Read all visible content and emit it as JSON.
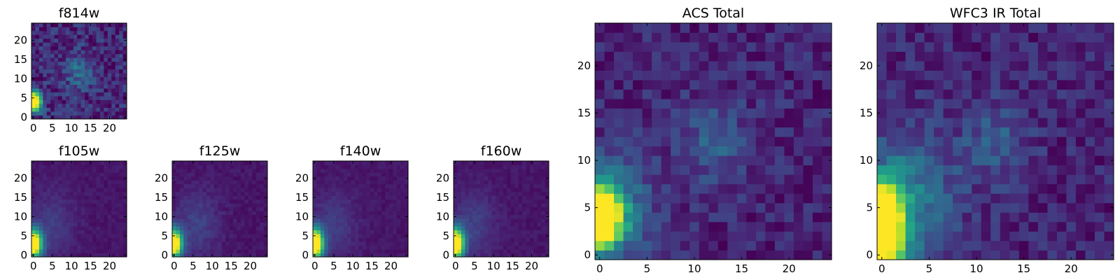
{
  "figure": {
    "colormap": "viridis",
    "colormap_stops": [
      "#440154",
      "#482878",
      "#3e4a89",
      "#31688e",
      "#26828e",
      "#1f9e89",
      "#35b779",
      "#6ece58",
      "#b5de2b",
      "#fde725"
    ]
  },
  "chart_data": [
    {
      "type": "heatmap",
      "title": "f814w",
      "grid_size": 25,
      "xlim": [
        0,
        24
      ],
      "ylim": [
        0,
        24
      ],
      "xticks": [
        "0",
        "5",
        "10",
        "15",
        "20"
      ],
      "yticks": [
        "0",
        "5",
        "10",
        "15",
        "20"
      ],
      "features": [
        {
          "x": 0,
          "y": 4,
          "sx": 1.4,
          "sy": 1.8,
          "value": 1.3
        },
        {
          "x": 12,
          "y": 12,
          "sx": 2.5,
          "sy": 3.0,
          "value": 0.25
        }
      ],
      "background": 0.12,
      "noise": 0.13
    },
    {
      "type": "heatmap",
      "title": "f105w",
      "grid_size": 25,
      "xlim": [
        0,
        24
      ],
      "ylim": [
        0,
        24
      ],
      "xticks": [
        "0",
        "5",
        "10",
        "15",
        "20"
      ],
      "yticks": [
        "0",
        "5",
        "10",
        "15",
        "20"
      ],
      "features": [
        {
          "x": 0,
          "y": 3,
          "sx": 1.6,
          "sy": 2.6,
          "value": 1.2
        },
        {
          "x": 5,
          "y": 8,
          "sx": 4.0,
          "sy": 6.0,
          "value": 0.12
        }
      ],
      "background": 0.06,
      "noise": 0.03
    },
    {
      "type": "heatmap",
      "title": "f125w",
      "grid_size": 25,
      "xlim": [
        0,
        24
      ],
      "ylim": [
        0,
        24
      ],
      "xticks": [
        "0",
        "5",
        "10",
        "15",
        "20"
      ],
      "yticks": [
        "0",
        "5",
        "10",
        "15",
        "20"
      ],
      "features": [
        {
          "x": 0,
          "y": 3,
          "sx": 1.5,
          "sy": 2.6,
          "value": 1.2
        },
        {
          "x": 6,
          "y": 8,
          "sx": 4.0,
          "sy": 6.0,
          "value": 0.14
        }
      ],
      "background": 0.06,
      "noise": 0.035
    },
    {
      "type": "heatmap",
      "title": "f140w",
      "grid_size": 25,
      "xlim": [
        0,
        24
      ],
      "ylim": [
        0,
        24
      ],
      "xticks": [
        "0",
        "5",
        "10",
        "15",
        "20"
      ],
      "yticks": [
        "0",
        "5",
        "10",
        "15",
        "20"
      ],
      "features": [
        {
          "x": 0,
          "y": 3,
          "sx": 1.6,
          "sy": 2.8,
          "value": 1.25
        },
        {
          "x": 5,
          "y": 8,
          "sx": 4.0,
          "sy": 6.0,
          "value": 0.12
        }
      ],
      "background": 0.06,
      "noise": 0.03
    },
    {
      "type": "heatmap",
      "title": "f160w",
      "grid_size": 25,
      "xlim": [
        0,
        24
      ],
      "ylim": [
        0,
        24
      ],
      "xticks": [
        "0",
        "5",
        "10",
        "15",
        "20"
      ],
      "yticks": [
        "0",
        "5",
        "10",
        "15",
        "20"
      ],
      "features": [
        {
          "x": 0,
          "y": 3,
          "sx": 1.6,
          "sy": 2.8,
          "value": 1.25
        },
        {
          "x": 5,
          "y": 8,
          "sx": 4.0,
          "sy": 6.0,
          "value": 0.13
        }
      ],
      "background": 0.06,
      "noise": 0.03
    },
    {
      "type": "heatmap",
      "title": "ACS Total",
      "grid_size": 25,
      "xlim": [
        0,
        24
      ],
      "ylim": [
        0,
        24
      ],
      "xticks": [
        "0",
        "5",
        "10",
        "15",
        "20"
      ],
      "yticks": [
        "0",
        "5",
        "10",
        "15",
        "20"
      ],
      "features": [
        {
          "x": 0,
          "y": 4,
          "sx": 1.6,
          "sy": 2.2,
          "value": 1.3
        },
        {
          "x": 1,
          "y": 5,
          "sx": 3.5,
          "sy": 4.0,
          "value": 0.28
        },
        {
          "x": 12,
          "y": 12,
          "sx": 2.5,
          "sy": 3.0,
          "value": 0.2
        }
      ],
      "background": 0.1,
      "noise": 0.1
    },
    {
      "type": "heatmap",
      "title": "WFC3 IR Total",
      "grid_size": 25,
      "xlim": [
        0,
        24
      ],
      "ylim": [
        0,
        24
      ],
      "xticks": [
        "0",
        "5",
        "10",
        "15",
        "20"
      ],
      "yticks": [
        "0",
        "5",
        "10",
        "15",
        "20"
      ],
      "features": [
        {
          "x": 0,
          "y": 3,
          "sx": 1.7,
          "sy": 3.3,
          "value": 1.25
        },
        {
          "x": 3,
          "y": 6,
          "sx": 3.5,
          "sy": 5.0,
          "value": 0.28
        },
        {
          "x": 12,
          "y": 12,
          "sx": 2.5,
          "sy": 3.0,
          "value": 0.18
        }
      ],
      "background": 0.1,
      "noise": 0.1
    }
  ]
}
